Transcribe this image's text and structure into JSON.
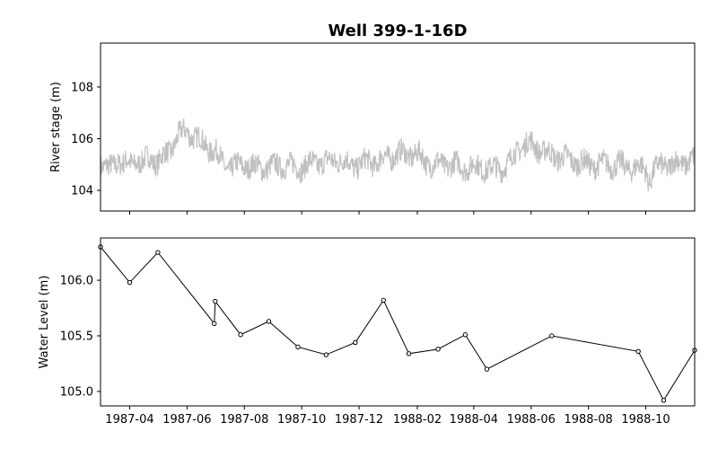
{
  "title": "Well 399-1-16D",
  "chart_data": [
    {
      "type": "line",
      "ylabel": "River stage (m)",
      "xlim": [
        "1987-03-01",
        "1988-11-22"
      ],
      "ylim": [
        103.2,
        109.7
      ],
      "yticks": [
        "104",
        "106",
        "108"
      ],
      "line_color": "#c0c0c0",
      "series": [
        {
          "points": [
            [
              "1987-03-01",
              105.1
            ],
            [
              "1987-03-05",
              104.9
            ],
            [
              "1987-03-10",
              104.8
            ],
            [
              "1987-03-15",
              105.0
            ],
            [
              "1987-03-20",
              105.2
            ],
            [
              "1987-03-25",
              105.0
            ],
            [
              "1987-04-01",
              105.0
            ],
            [
              "1987-04-08",
              105.2
            ],
            [
              "1987-04-15",
              105.0
            ],
            [
              "1987-04-22",
              105.3
            ],
            [
              "1987-05-01",
              105.1
            ],
            [
              "1987-05-08",
              105.3
            ],
            [
              "1987-05-15",
              105.6
            ],
            [
              "1987-05-22",
              106.1
            ],
            [
              "1987-06-01",
              106.3
            ],
            [
              "1987-06-08",
              106.1
            ],
            [
              "1987-06-15",
              105.9
            ],
            [
              "1987-06-22",
              105.7
            ],
            [
              "1987-07-01",
              105.5
            ],
            [
              "1987-07-08",
              105.1
            ],
            [
              "1987-07-15",
              104.9
            ],
            [
              "1987-07-22",
              104.9
            ],
            [
              "1987-08-01",
              105.0
            ],
            [
              "1987-08-10",
              104.9
            ],
            [
              "1987-08-20",
              104.9
            ],
            [
              "1987-09-01",
              104.9
            ],
            [
              "1987-09-10",
              105.0
            ],
            [
              "1987-09-20",
              104.9
            ],
            [
              "1987-10-01",
              104.9
            ],
            [
              "1987-10-10",
              105.0
            ],
            [
              "1987-10-20",
              105.1
            ],
            [
              "1987-11-01",
              105.1
            ],
            [
              "1987-11-10",
              105.2
            ],
            [
              "1987-11-20",
              105.0
            ],
            [
              "1987-12-01",
              105.0
            ],
            [
              "1987-12-10",
              105.1
            ],
            [
              "1987-12-20",
              105.1
            ],
            [
              "1988-01-01",
              105.3
            ],
            [
              "1988-01-10",
              105.4
            ],
            [
              "1988-01-20",
              105.4
            ],
            [
              "1988-02-01",
              105.4
            ],
            [
              "1988-02-10",
              105.1
            ],
            [
              "1988-02-20",
              105.0
            ],
            [
              "1988-03-01",
              105.0
            ],
            [
              "1988-03-10",
              105.0
            ],
            [
              "1988-03-20",
              104.9
            ],
            [
              "1988-04-01",
              104.9
            ],
            [
              "1988-04-10",
              104.9
            ],
            [
              "1988-04-20",
              104.8
            ],
            [
              "1988-05-01",
              104.9
            ],
            [
              "1988-05-10",
              105.1
            ],
            [
              "1988-05-20",
              105.7
            ],
            [
              "1988-06-01",
              105.8
            ],
            [
              "1988-06-10",
              105.6
            ],
            [
              "1988-06-20",
              105.4
            ],
            [
              "1988-07-01",
              105.3
            ],
            [
              "1988-07-10",
              105.2
            ],
            [
              "1988-07-20",
              105.1
            ],
            [
              "1988-08-01",
              105.0
            ],
            [
              "1988-08-10",
              105.0
            ],
            [
              "1988-08-20",
              105.0
            ],
            [
              "1988-09-01",
              105.0
            ],
            [
              "1988-09-10",
              104.9
            ],
            [
              "1988-09-20",
              104.9
            ],
            [
              "1988-10-01",
              104.8
            ],
            [
              "1988-10-05",
              104.4
            ],
            [
              "1988-10-10",
              104.8
            ],
            [
              "1988-10-20",
              105.0
            ],
            [
              "1988-11-01",
              105.0
            ],
            [
              "1988-11-10",
              105.1
            ],
            [
              "1988-11-22",
              105.2
            ]
          ]
        }
      ]
    },
    {
      "type": "line",
      "ylabel": "Water Level (m)",
      "xlim": [
        "1987-03-01",
        "1988-11-22"
      ],
      "ylim": [
        104.87,
        106.38
      ],
      "yticks": [
        "105.0",
        "105.5",
        "106.0"
      ],
      "xticks": [
        "1987-04",
        "1987-06",
        "1987-08",
        "1987-10",
        "1987-12",
        "1988-02",
        "1988-04",
        "1988-06",
        "1988-08",
        "1988-10"
      ],
      "line_color": "#000000",
      "marker": "circle-open",
      "series": [
        {
          "points": [
            [
              "1987-03-01",
              106.3
            ],
            [
              "1987-04-01",
              105.98
            ],
            [
              "1987-05-01",
              106.25
            ],
            [
              "1987-06-30",
              105.61
            ],
            [
              "1987-07-01",
              105.81
            ],
            [
              "1987-07-28",
              105.51
            ],
            [
              "1987-08-27",
              105.63
            ],
            [
              "1987-09-27",
              105.4
            ],
            [
              "1987-10-27",
              105.33
            ],
            [
              "1987-11-27",
              105.44
            ],
            [
              "1987-12-27",
              105.82
            ],
            [
              "1988-01-23",
              105.34
            ],
            [
              "1988-02-23",
              105.38
            ],
            [
              "1988-03-23",
              105.51
            ],
            [
              "1988-04-15",
              105.2
            ],
            [
              "1988-06-23",
              105.5
            ],
            [
              "1988-09-23",
              105.36
            ],
            [
              "1988-10-20",
              104.92
            ],
            [
              "1988-11-22",
              105.37
            ]
          ]
        }
      ]
    }
  ]
}
